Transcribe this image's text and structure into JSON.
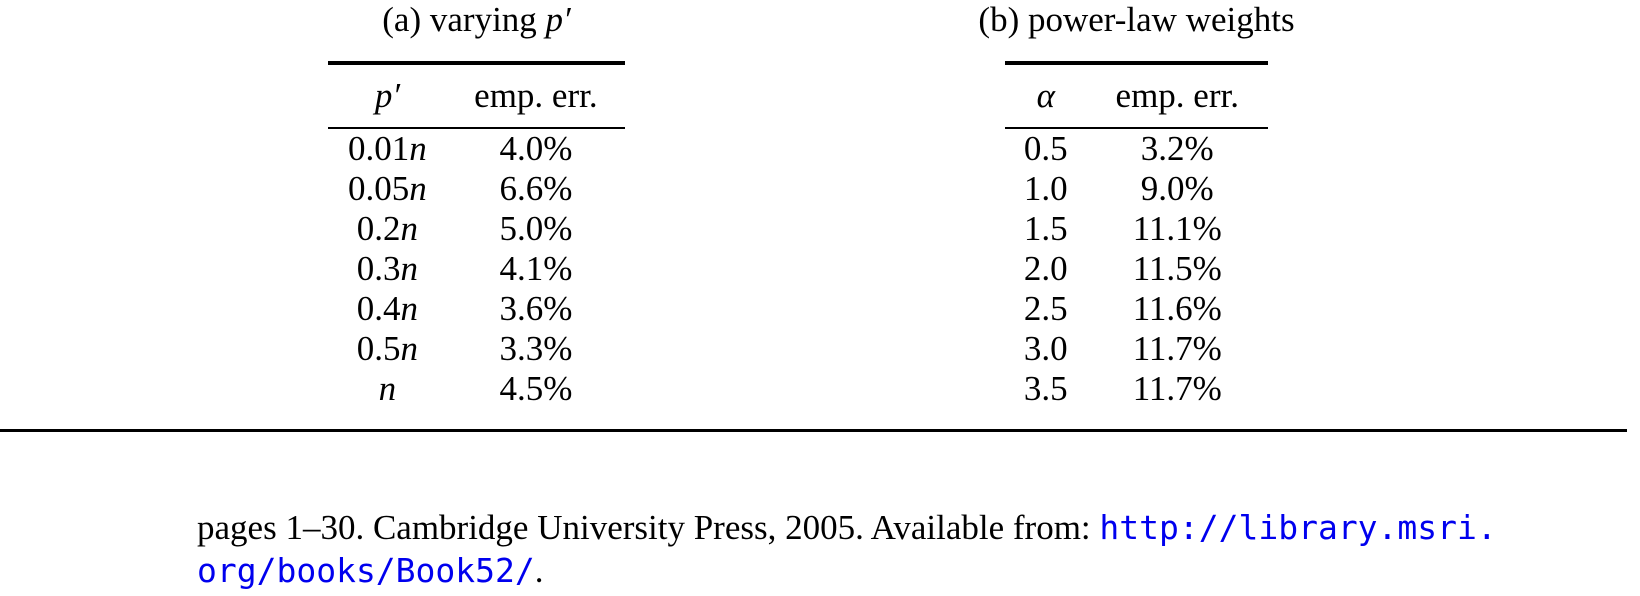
{
  "page": {
    "background_color": "#ffffff",
    "text_color": "#000000"
  },
  "subtables": [
    {
      "caption_text": "(a) varying ",
      "caption_math": "p′",
      "columns": [
        "p′",
        "emp. err."
      ],
      "rows": [
        {
          "num": "0.01",
          "var": "n",
          "err": "4.0%"
        },
        {
          "num": "0.05",
          "var": "n",
          "err": "6.6%"
        },
        {
          "num": "0.2",
          "var": "n",
          "err": "5.0%"
        },
        {
          "num": "0.3",
          "var": "n",
          "err": "4.1%"
        },
        {
          "num": "0.4",
          "var": "n",
          "err": "3.6%"
        },
        {
          "num": "0.5",
          "var": "n",
          "err": "3.3%"
        },
        {
          "num": "",
          "var": "n",
          "err": "4.5%"
        }
      ]
    },
    {
      "caption_text": "(b) power-law weights",
      "caption_math": "",
      "columns": [
        "α",
        "emp. err."
      ],
      "rows": [
        {
          "num": "0.5",
          "var": "",
          "err": "3.2%"
        },
        {
          "num": "1.0",
          "var": "",
          "err": "9.0%"
        },
        {
          "num": "1.5",
          "var": "",
          "err": "11.1%"
        },
        {
          "num": "2.0",
          "var": "",
          "err": "11.5%"
        },
        {
          "num": "2.5",
          "var": "",
          "err": "11.6%"
        },
        {
          "num": "3.0",
          "var": "",
          "err": "11.7%"
        },
        {
          "num": "3.5",
          "var": "",
          "err": "11.7%"
        }
      ]
    }
  ],
  "reference": {
    "text_before_link": "pages 1–30. Cambridge University Press, 2005. Available from: ",
    "url_line1": "http://library.msri.",
    "url_line2": "org/books/Book52/",
    "text_after_link": ".",
    "link_color": "#0000ee"
  }
}
